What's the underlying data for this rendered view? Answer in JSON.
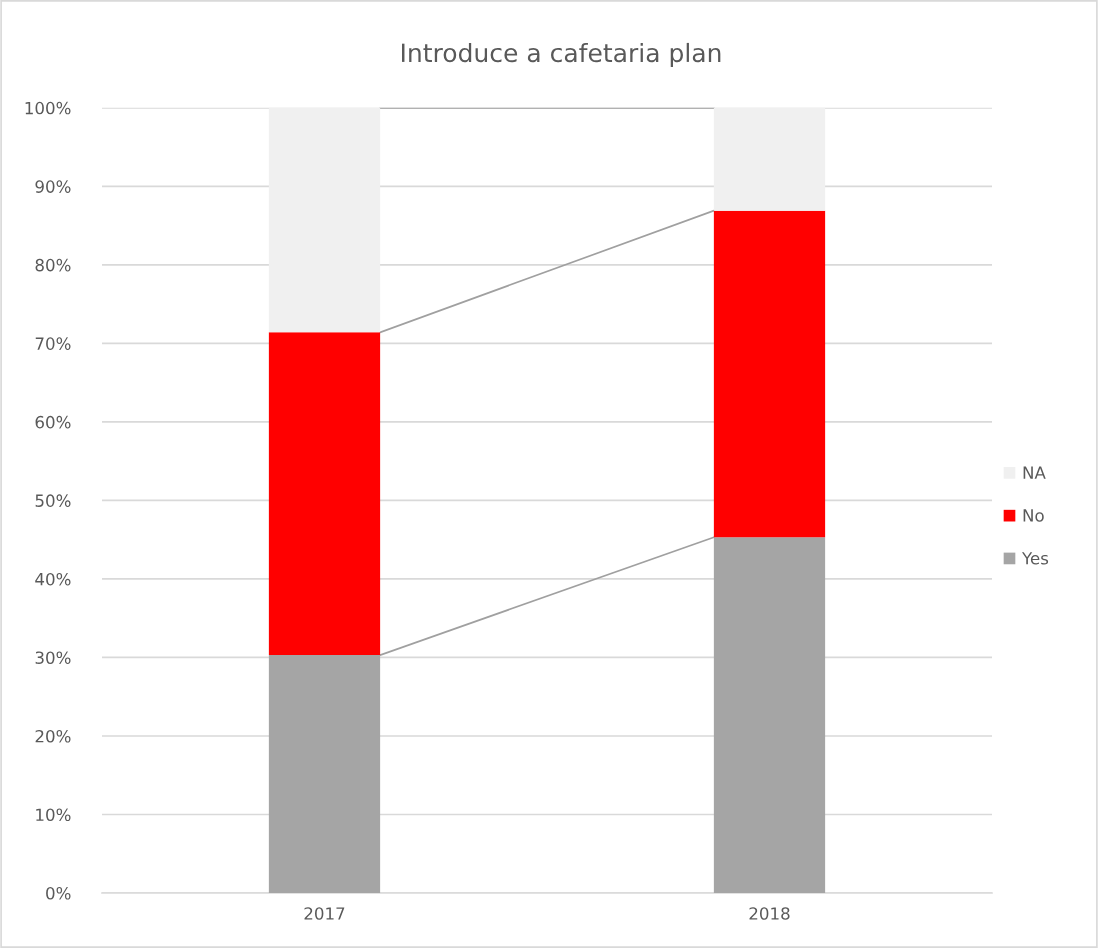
{
  "chart_data": {
    "type": "bar",
    "title": "Introduce a cafetaria plan",
    "stacked": true,
    "categories": [
      "2017",
      "2018"
    ],
    "series": [
      {
        "name": "Yes",
        "color": "#a5a5a5",
        "values": [
          30.3,
          45.3
        ]
      },
      {
        "name": "No",
        "color": "#ff0000",
        "values": [
          41.1,
          41.6
        ]
      },
      {
        "name": "NA",
        "color": "#f0f0f0",
        "values": [
          28.6,
          13.1
        ]
      }
    ],
    "ylim": [
      0,
      100
    ],
    "yticks": [
      {
        "value": 0,
        "label": "0%"
      },
      {
        "value": 10,
        "label": "10%"
      },
      {
        "value": 20,
        "label": "20%"
      },
      {
        "value": 30,
        "label": "30%"
      },
      {
        "value": 40,
        "label": "40%"
      },
      {
        "value": 50,
        "label": "50%"
      },
      {
        "value": 60,
        "label": "60%"
      },
      {
        "value": 70,
        "label": "70%"
      },
      {
        "value": 80,
        "label": "80%"
      },
      {
        "value": 90,
        "label": "90%"
      },
      {
        "value": 100,
        "label": "100%"
      }
    ],
    "grid": "y",
    "legend": "right"
  }
}
